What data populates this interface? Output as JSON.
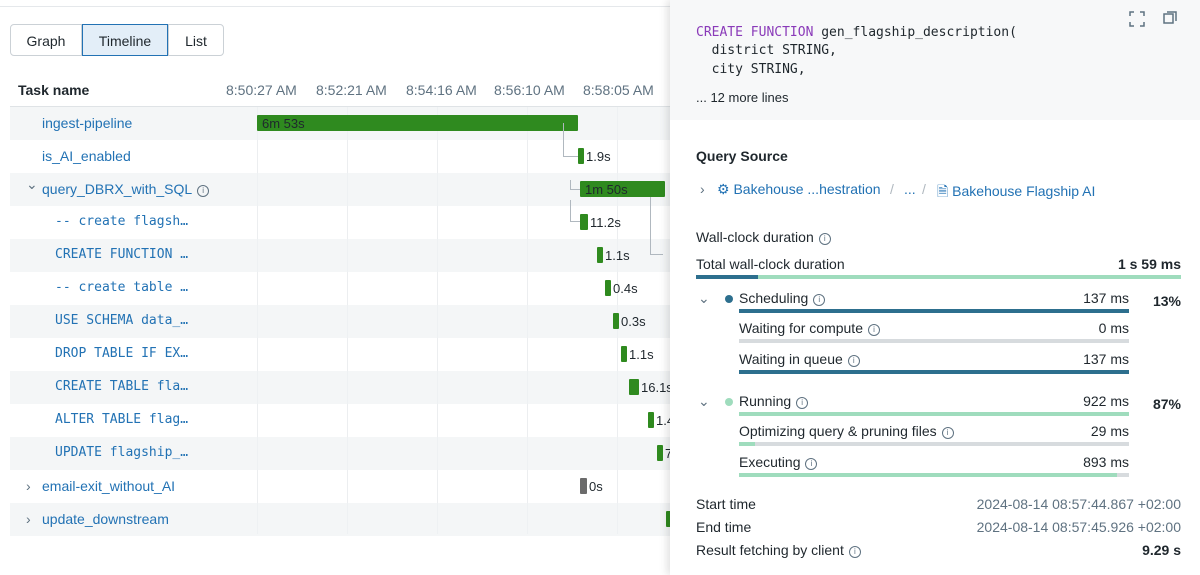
{
  "tabs": [
    "Graph",
    "Timeline",
    "List"
  ],
  "timeline": {
    "header": "Task name",
    "times": [
      "8:50:27 AM",
      "8:52:21 AM",
      "8:54:16 AM",
      "8:56:10 AM",
      "8:58:05 AM"
    ],
    "tasks": [
      {
        "name": "ingest-pipeline",
        "duration": "6m 53s"
      },
      {
        "name": "is_AI_enabled",
        "duration": "1.9s"
      },
      {
        "name": "query_DBRX_with_SQL",
        "duration": "1m 50s"
      },
      {
        "name": "-- create flagsh…",
        "duration": "11.2s"
      },
      {
        "name": "CREATE FUNCTION …",
        "duration": "1.1s"
      },
      {
        "name": "-- create table …",
        "duration": "0.4s"
      },
      {
        "name": "USE SCHEMA data_…",
        "duration": "0.3s"
      },
      {
        "name": "DROP TABLE IF EX…",
        "duration": "1.1s"
      },
      {
        "name": "CREATE TABLE fla…",
        "duration": "16.1s"
      },
      {
        "name": "ALTER TABLE flag…",
        "duration": "1.4"
      },
      {
        "name": "UPDATE flagship_…",
        "duration": "7"
      },
      {
        "name": "email-exit_without_AI",
        "duration": "0s"
      },
      {
        "name": "update_downstream",
        "duration": ""
      }
    ]
  },
  "detail": {
    "code": {
      "keyword": "CREATE FUNCTION",
      "first": " gen_flagship_description(",
      "lines": [
        "  district STRING,",
        "  city STRING,"
      ]
    },
    "more": "... 12 more lines",
    "query_source": {
      "title": "Query Source",
      "crumbs": [
        "Bakehouse ...hestration",
        "...",
        "Bakehouse Flagship AI"
      ]
    },
    "wall_clock": {
      "title": "Wall-clock duration",
      "total_label": "Total wall-clock duration",
      "total": "1 s 59 ms",
      "groups": [
        {
          "name": "Scheduling",
          "value": "137 ms",
          "pct": "13%",
          "items": [
            {
              "name": "Waiting for compute",
              "value": "0 ms"
            },
            {
              "name": "Waiting in queue",
              "value": "137 ms"
            }
          ]
        },
        {
          "name": "Running",
          "value": "922 ms",
          "pct": "87%",
          "items": [
            {
              "name": "Optimizing query & pruning files",
              "value": "29 ms"
            },
            {
              "name": "Executing",
              "value": "893 ms"
            }
          ]
        }
      ]
    },
    "times": [
      {
        "label": "Start time",
        "value": "2024-08-14 08:57:44.867 +02:00"
      },
      {
        "label": "End time",
        "value": "2024-08-14 08:57:45.926 +02:00"
      },
      {
        "label": "Result fetching by client",
        "value": "9.29 s"
      }
    ]
  }
}
